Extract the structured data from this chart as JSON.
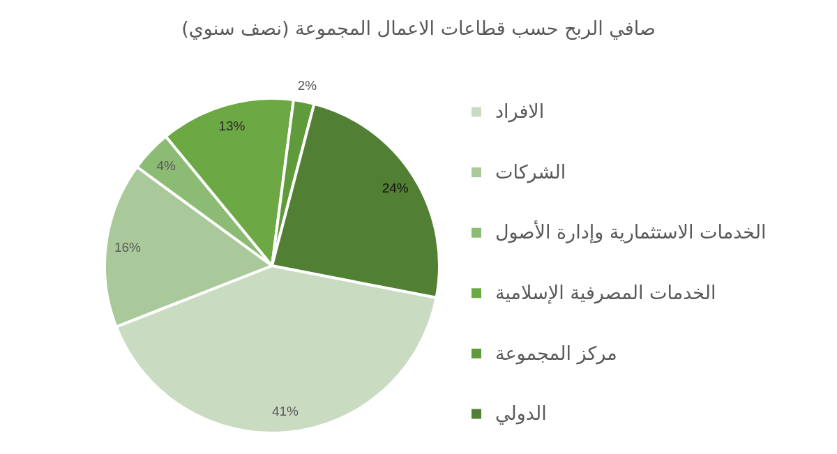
{
  "chart_data": {
    "type": "pie",
    "title": "صافي الربح حسب قطاعات الاعمال المجموعة (نصف سنوي)",
    "categories": [
      "الافراد",
      "الشركات",
      "الخدمات الاستثمارية وإدارة الأصول",
      "الخدمات المصرفية الإسلامية",
      "مركز المجموعة",
      "الدولي"
    ],
    "values": [
      41,
      16,
      4,
      13,
      2,
      24
    ],
    "value_labels": [
      "41%",
      "16%",
      "4%",
      "13%",
      "2%",
      "24%"
    ],
    "colors": [
      "#c9dcc1",
      "#a9c99b",
      "#8cbb73",
      "#6ca843",
      "#5f9b3a",
      "#517f33"
    ],
    "legend": "right"
  }
}
